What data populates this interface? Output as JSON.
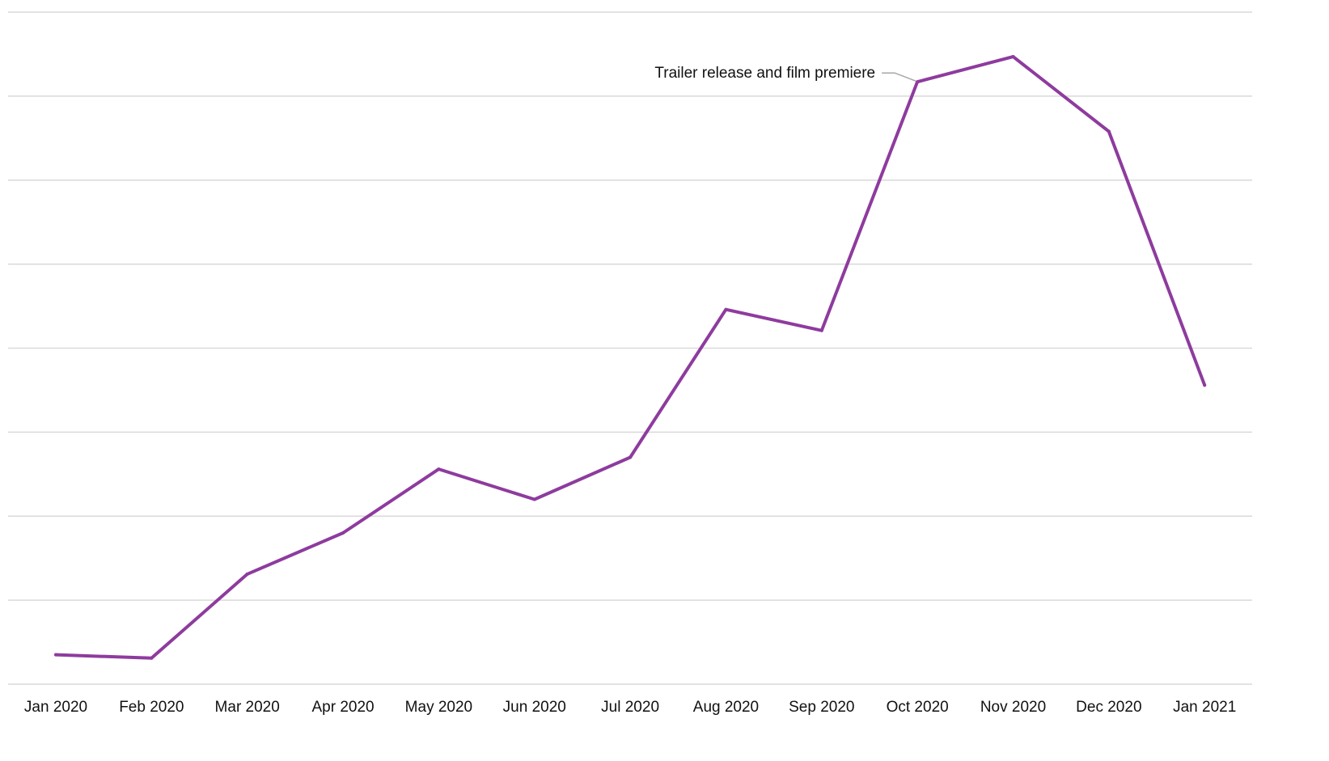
{
  "chart_data": {
    "type": "line",
    "title": "",
    "xlabel": "",
    "ylabel": "",
    "categories": [
      "Jan 2020",
      "Feb 2020",
      "Mar 2020",
      "Apr 2020",
      "May 2020",
      "Jun 2020",
      "Jul 2020",
      "Aug 2020",
      "Sep 2020",
      "Oct 2020",
      "Nov 2020",
      "Dec 2020",
      "Jan 2021"
    ],
    "series": [
      {
        "values": [
          3.5,
          3.1,
          13.1,
          18.0,
          25.6,
          22.0,
          27.0,
          44.6,
          42.1,
          71.7,
          74.7,
          65.8,
          35.6
        ]
      }
    ],
    "ylim": [
      0,
      80
    ],
    "grid": true,
    "legend": "none",
    "colors": {
      "line": "#8e3b9e"
    },
    "annotations": [
      {
        "text": "Trailer release and film premiere",
        "category": "Oct 2020"
      }
    ]
  }
}
